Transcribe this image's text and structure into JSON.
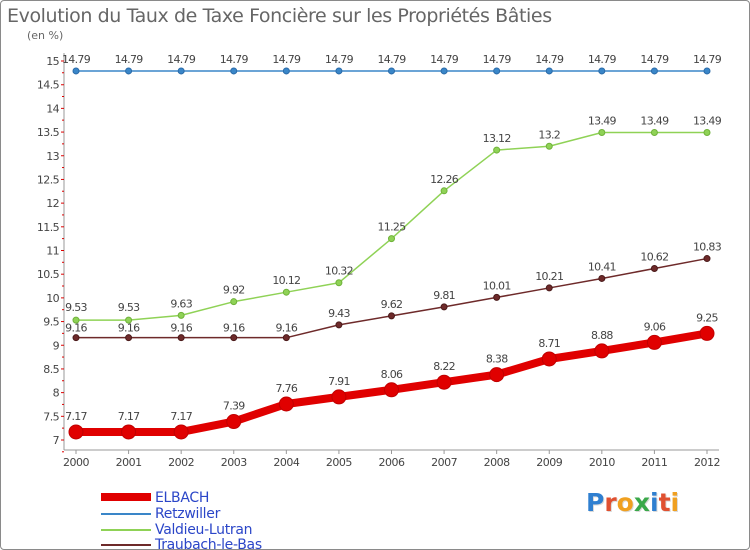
{
  "title": "Evolution du Taux de Taxe Foncière sur les Propriétés Bâties",
  "unit_label": "(en %)",
  "logo": "Proxiti",
  "chart_data": {
    "type": "line",
    "title": "Evolution du Taux de Taxe Foncière sur les Propriétés Bâties",
    "ylabel": "(en %)",
    "xlabel": "",
    "x": [
      "2000",
      "2001",
      "2002",
      "2003",
      "2004",
      "2005",
      "2006",
      "2007",
      "2008",
      "2009",
      "2010",
      "2011",
      "2012"
    ],
    "yticks": [
      "7",
      "7.5",
      "8",
      "8.5",
      "9",
      "9.5",
      "10",
      "10.5",
      "11",
      "11.5",
      "12",
      "12.5",
      "13",
      "13.5",
      "14",
      "14.5",
      "15"
    ],
    "ylim": [
      7,
      15
    ],
    "grid": false,
    "legend_position": "bottom-left",
    "series": [
      {
        "name": "ELBACH",
        "color": "#e00000",
        "values": [
          7.17,
          7.17,
          7.17,
          7.39,
          7.76,
          7.91,
          8.06,
          8.22,
          8.38,
          8.71,
          8.88,
          9.06,
          9.25
        ],
        "labels": [
          "7.17",
          "7.17",
          "7.17",
          "7.39",
          "7.76",
          "7.91",
          "8.06",
          "8.22",
          "8.38",
          "8.71",
          "8.88",
          "9.06",
          "9.25"
        ]
      },
      {
        "name": "Retzwiller",
        "color": "#3a86c8",
        "values": [
          14.79,
          14.79,
          14.79,
          14.79,
          14.79,
          14.79,
          14.79,
          14.79,
          14.79,
          14.79,
          14.79,
          14.79,
          14.79
        ],
        "labels": [
          "14.79",
          "14.79",
          "14.79",
          "14.79",
          "14.79",
          "14.79",
          "14.79",
          "14.79",
          "14.79",
          "14.79",
          "14.79",
          "14.79",
          "14.79"
        ]
      },
      {
        "name": "Valdieu-Lutran",
        "color": "#8fd256",
        "values": [
          9.53,
          9.53,
          9.63,
          9.92,
          10.12,
          10.32,
          11.25,
          12.26,
          13.12,
          13.2,
          13.49,
          13.49,
          13.49
        ],
        "labels": [
          "9.53",
          "9.53",
          "9.63",
          "9.92",
          "10.12",
          "10.32",
          "11.25",
          "12.26",
          "13.12",
          "13.2",
          "13.49",
          "13.49",
          "13.49"
        ]
      },
      {
        "name": "Traubach-le-Bas",
        "color": "#6e2a2a",
        "values": [
          9.16,
          9.16,
          9.16,
          9.16,
          9.16,
          9.43,
          9.62,
          9.81,
          10.01,
          10.21,
          10.41,
          10.62,
          10.83
        ],
        "labels": [
          "9.16",
          "9.16",
          "9.16",
          "9.16",
          "9.16",
          "9.43",
          "9.62",
          "9.81",
          "10.01",
          "10.21",
          "10.41",
          "10.62",
          "10.83"
        ]
      }
    ]
  }
}
